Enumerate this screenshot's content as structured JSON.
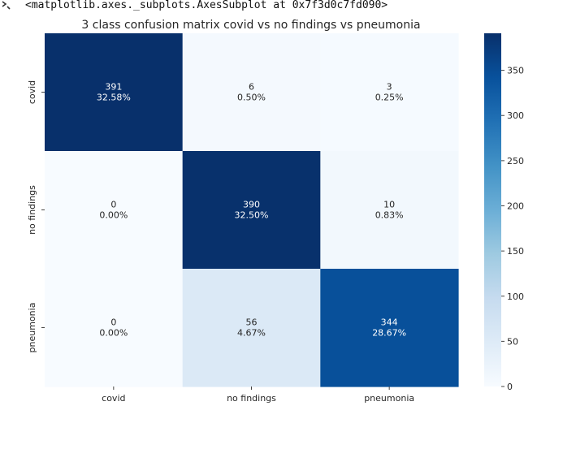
{
  "output": {
    "prompt_icon": "output-arrow-icon",
    "repr_text": "<matplotlib.axes._subplots.AxesSubplot at 0x7f3d0c7fd090>"
  },
  "chart_data": {
    "type": "heatmap",
    "title": "3 class confusion matrix covid vs no findings vs pneumonia",
    "xlabel": "",
    "ylabel": "",
    "x_categories": [
      "covid",
      "no findings",
      "pneumonia"
    ],
    "y_categories": [
      "covid",
      "no findings",
      "pneumonia"
    ],
    "values": [
      [
        391,
        6,
        3
      ],
      [
        0,
        390,
        10
      ],
      [
        0,
        56,
        344
      ]
    ],
    "percent_labels": [
      [
        "32.58%",
        "0.50%",
        "0.25%"
      ],
      [
        "0.00%",
        "32.50%",
        "0.83%"
      ],
      [
        "0.00%",
        "4.67%",
        "28.67%"
      ]
    ],
    "colormap": "Blues",
    "colorbar": {
      "range": [
        0,
        391
      ],
      "ticks": [
        0,
        50,
        100,
        150,
        200,
        250,
        300,
        350
      ]
    }
  }
}
